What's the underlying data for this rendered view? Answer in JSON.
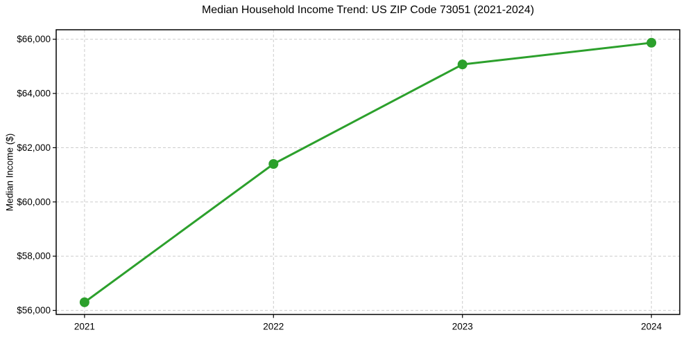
{
  "chart_data": {
    "type": "line",
    "title": "Median Household Income Trend: US ZIP Code 73051 (2021-2024)",
    "xlabel": "",
    "ylabel": "Median Income ($)",
    "x": [
      2021,
      2022,
      2023,
      2024
    ],
    "values": [
      56300,
      61400,
      65070,
      65870
    ],
    "xtick_labels": [
      "2021",
      "2022",
      "2023",
      "2024"
    ],
    "ytick_values": [
      56000,
      58000,
      60000,
      62000,
      64000,
      66000
    ],
    "ytick_labels": [
      "$56,000",
      "$58,000",
      "$60,000",
      "$62,000",
      "$64,000",
      "$66,000"
    ],
    "xlim": [
      2020.85,
      2024.15
    ],
    "ylim": [
      55850,
      66350
    ],
    "grid": true,
    "grid_style": "dashed",
    "legend": "none",
    "line_color": "#2ca02c",
    "marker": "o",
    "grid_color": "#cccccc",
    "frame_color": "#000000",
    "background_color": "#ffffff",
    "text_color": "#000000"
  }
}
